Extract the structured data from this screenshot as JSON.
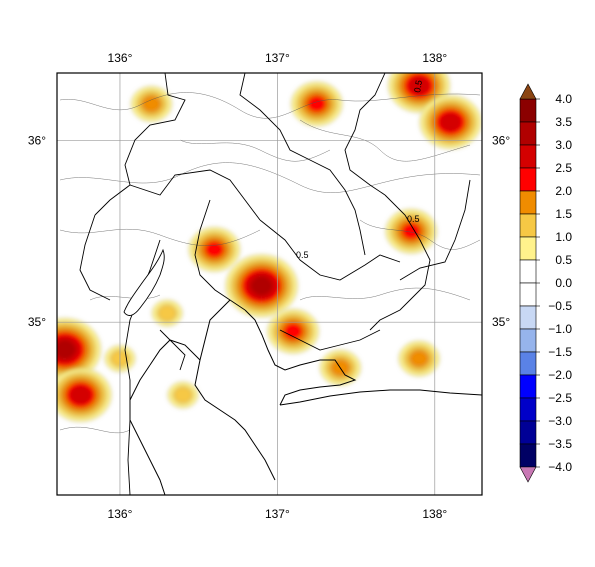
{
  "map": {
    "lon_labels": [
      {
        "value": 136,
        "text": "136°"
      },
      {
        "value": 137,
        "text": "137°"
      },
      {
        "value": 138,
        "text": "138°"
      }
    ],
    "lat_labels": [
      {
        "value": 36,
        "text": "36°"
      },
      {
        "value": 35,
        "text": "35°"
      }
    ],
    "extent": {
      "lon_min": 135.6,
      "lon_max": 138.3,
      "lat_min": 34.05,
      "lat_max": 36.37
    }
  },
  "colorbar": {
    "levels": [
      "4.0",
      "3.5",
      "3.0",
      "2.5",
      "2.0",
      "1.5",
      "1.0",
      "0.5",
      "0.0",
      "−0.5",
      "−1.0",
      "−1.5",
      "−2.0",
      "−2.5",
      "−3.0",
      "−3.5",
      "−4.0"
    ],
    "colors": [
      "#8b0000",
      "#b00000",
      "#d40000",
      "#ff0000",
      "#f08c00",
      "#f6c845",
      "#fff28c",
      "#ffffff",
      "#ffffff",
      "#c8d8f4",
      "#96b4ec",
      "#5a82e6",
      "#0000ff",
      "#0000c8",
      "#000096",
      "#000064"
    ],
    "top_arrow_color": "#8b4513",
    "bottom_arrow_color": "#c878b4"
  },
  "contour_labels": [
    "0.5",
    "0.5",
    "0.5"
  ],
  "hotspots": [
    {
      "lon": 136.9,
      "lat": 35.2,
      "intensity": 3.0
    },
    {
      "lon": 135.65,
      "lat": 34.85,
      "intensity": 3.0
    },
    {
      "lon": 135.75,
      "lat": 34.6,
      "intensity": 2.5
    },
    {
      "lon": 137.1,
      "lat": 34.95,
      "intensity": 2.0
    },
    {
      "lon": 136.6,
      "lat": 35.4,
      "intensity": 2.0
    },
    {
      "lon": 137.9,
      "lat": 36.3,
      "intensity": 2.5
    },
    {
      "lon": 138.1,
      "lat": 36.1,
      "intensity": 2.5
    },
    {
      "lon": 137.85,
      "lat": 35.5,
      "intensity": 2.0
    },
    {
      "lon": 137.25,
      "lat": 36.2,
      "intensity": 2.0
    },
    {
      "lon": 137.4,
      "lat": 34.75,
      "intensity": 1.5
    },
    {
      "lon": 137.9,
      "lat": 34.8,
      "intensity": 1.5
    },
    {
      "lon": 136.2,
      "lat": 36.2,
      "intensity": 1.5
    },
    {
      "lon": 136.3,
      "lat": 35.05,
      "intensity": 1.0
    },
    {
      "lon": 136.4,
      "lat": 34.6,
      "intensity": 1.0
    },
    {
      "lon": 136.0,
      "lat": 34.8,
      "intensity": 1.0
    }
  ]
}
